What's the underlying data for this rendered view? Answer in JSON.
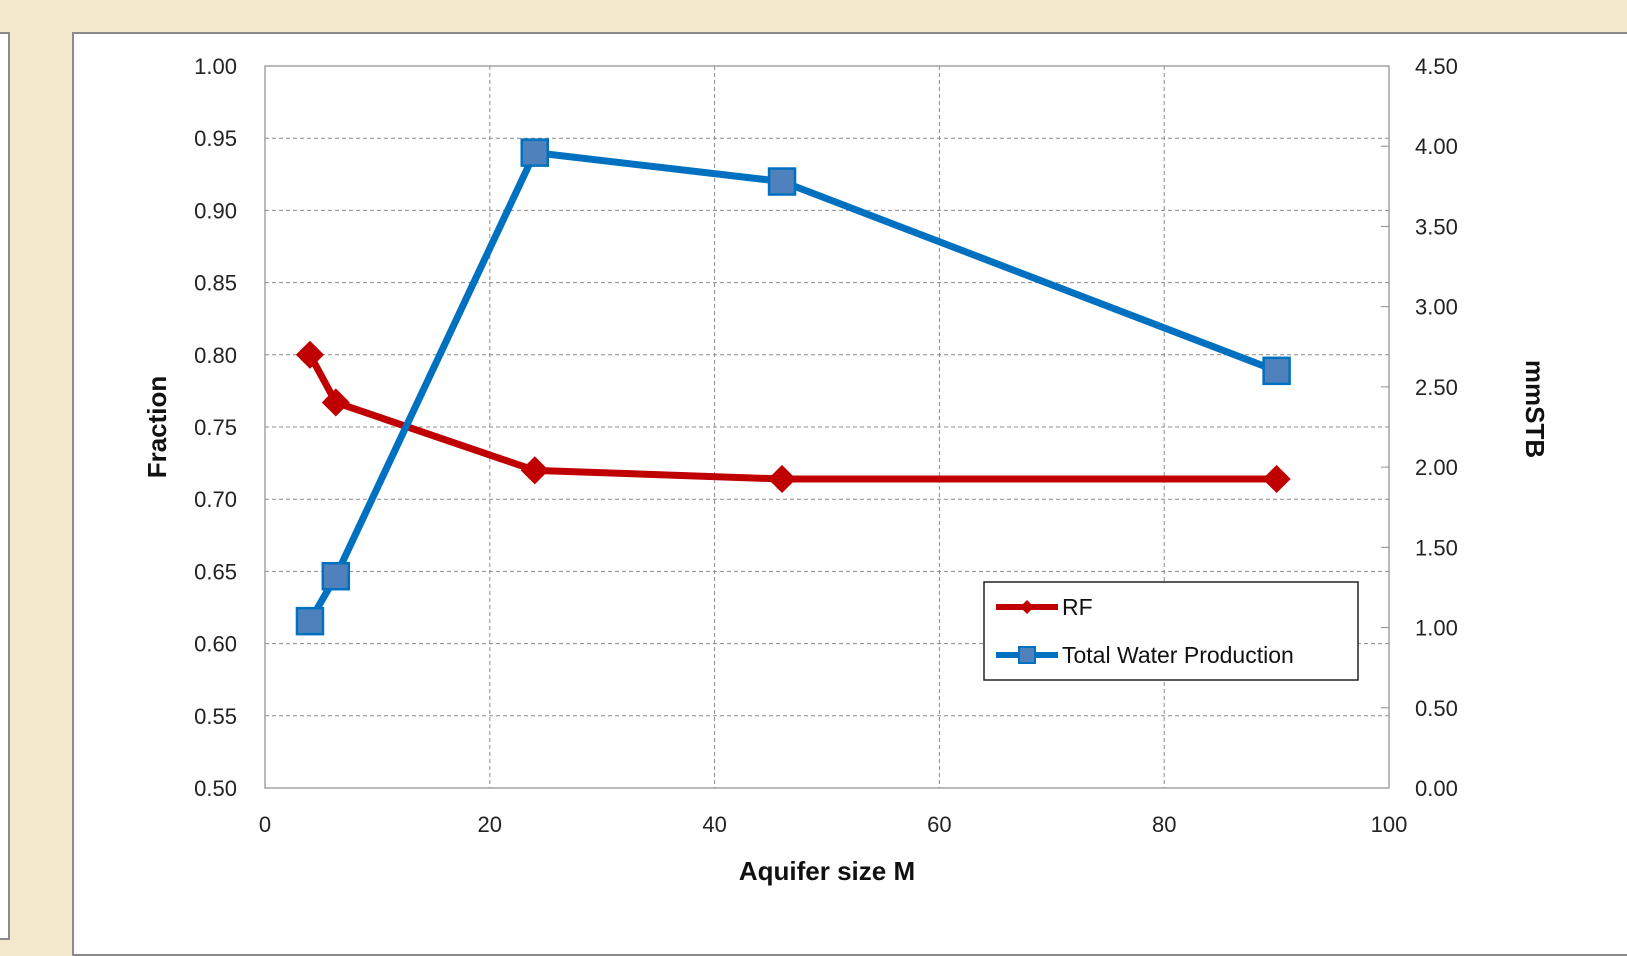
{
  "chart_data": {
    "type": "line",
    "xlabel": "Aquifer size M",
    "ylabel": "Fraction",
    "y2label": "mmSTB",
    "xlim": [
      0,
      100
    ],
    "ylim": [
      0.5,
      1.0
    ],
    "y2lim": [
      0,
      4.5
    ],
    "xticks": [
      "0",
      "20",
      "40",
      "60",
      "80",
      "100"
    ],
    "yticks": [
      "0.50",
      "0.55",
      "0.60",
      "0.65",
      "0.70",
      "0.75",
      "0.80",
      "0.85",
      "0.90",
      "0.95",
      "1.00"
    ],
    "y2ticks": [
      "0.00",
      "0.50",
      "1.00",
      "1.50",
      "2.00",
      "2.50",
      "3.00",
      "3.50",
      "4.00",
      "4.50"
    ],
    "grid": true,
    "legend": "lower-right",
    "series": [
      {
        "name": "RF",
        "axis": "left",
        "color": "#c00000",
        "marker": "diamond",
        "x": [
          4,
          6.3,
          24,
          46,
          90
        ],
        "y": [
          0.8,
          0.767,
          0.72,
          0.714,
          0.714
        ]
      },
      {
        "name": "Total Water Production",
        "axis": "right",
        "color": "#0070c0",
        "marker": "square",
        "markerColor": "#4f81bd",
        "x": [
          4,
          6.3,
          24,
          46,
          90
        ],
        "y": [
          1.04,
          1.32,
          3.96,
          3.78,
          2.6
        ]
      }
    ]
  }
}
